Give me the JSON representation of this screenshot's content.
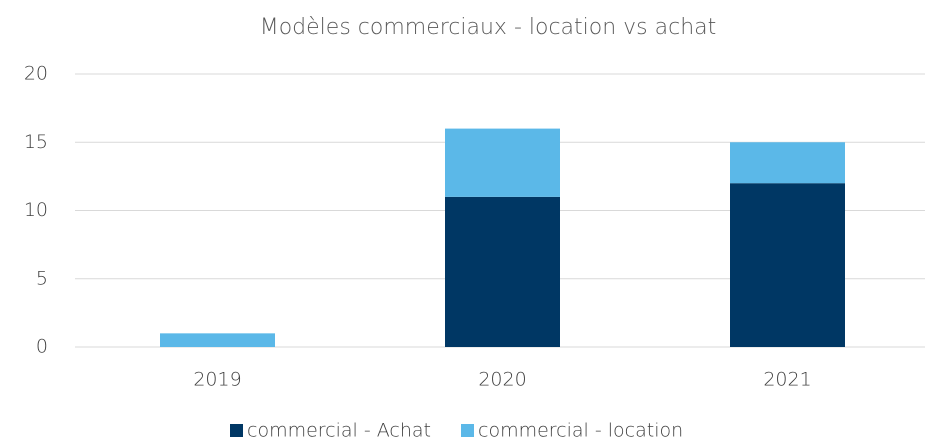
{
  "chart_data": {
    "type": "stacked_bar",
    "title": "Modèles commerciaux - location vs achat",
    "categories": [
      "2019",
      "2020",
      "2021"
    ],
    "series": [
      {
        "name": "commercial - Achat",
        "color": "#003764",
        "values": [
          0,
          11,
          12
        ]
      },
      {
        "name": "commercial - location",
        "color": "#5bb8e8",
        "values": [
          1,
          5,
          3
        ]
      }
    ],
    "ylim": [
      0,
      20
    ],
    "yticks": [
      0,
      5,
      10,
      15,
      20
    ],
    "grid": true,
    "legend": "bottom"
  }
}
